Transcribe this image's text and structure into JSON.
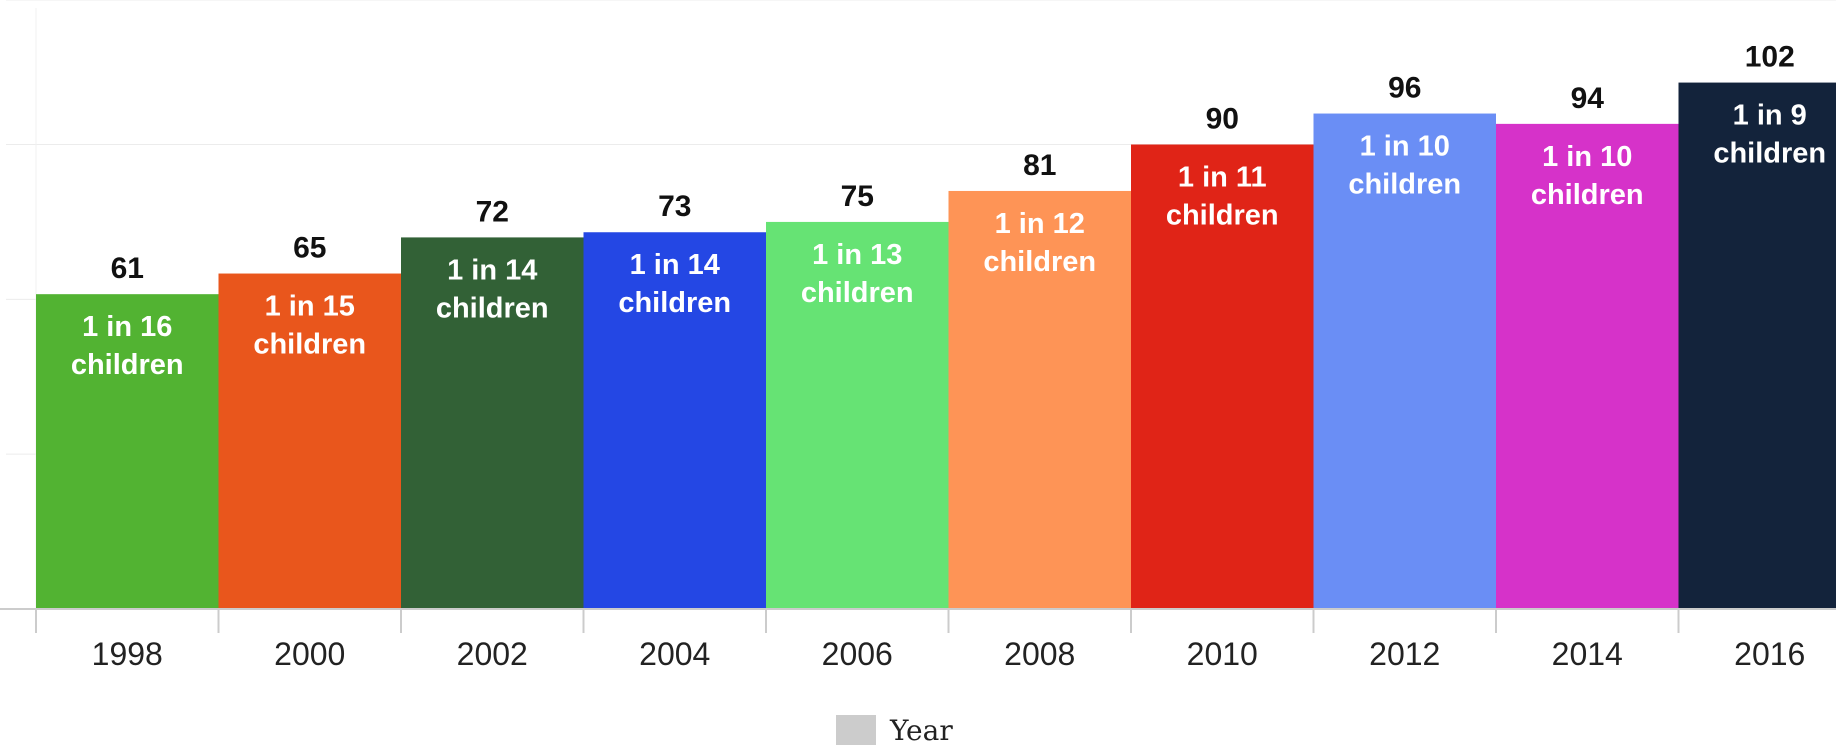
{
  "chart_data": {
    "type": "bar",
    "title": "",
    "xlabel": "",
    "ylabel": "",
    "ylim": [
      0,
      118
    ],
    "categories": [
      "1998",
      "2000",
      "2002",
      "2004",
      "2006",
      "2008",
      "2010",
      "2012",
      "2014",
      "2016"
    ],
    "values": [
      61,
      65,
      72,
      73,
      75,
      81,
      90,
      96,
      94,
      102
    ],
    "bar_labels": [
      [
        "1 in 16",
        "children"
      ],
      [
        "1 in 15",
        "children"
      ],
      [
        "1 in 14",
        "children"
      ],
      [
        "1 in 14",
        "children"
      ],
      [
        "1 in 13",
        "children"
      ],
      [
        "1 in 12",
        "children"
      ],
      [
        "1 in 11",
        "children"
      ],
      [
        "1 in 10",
        "children"
      ],
      [
        "1 in 10",
        "children"
      ],
      [
        "1 in 9",
        "children"
      ]
    ],
    "colors": [
      "#52b332",
      "#e9561c",
      "#326136",
      "#2447e4",
      "#66e374",
      "#fe9456",
      "#e02417",
      "#6a8ef5",
      "#d632c9",
      "#13233b"
    ],
    "legend": {
      "label": "Year",
      "color": "#cccccc",
      "position": "bottom-center"
    },
    "grid": true
  }
}
